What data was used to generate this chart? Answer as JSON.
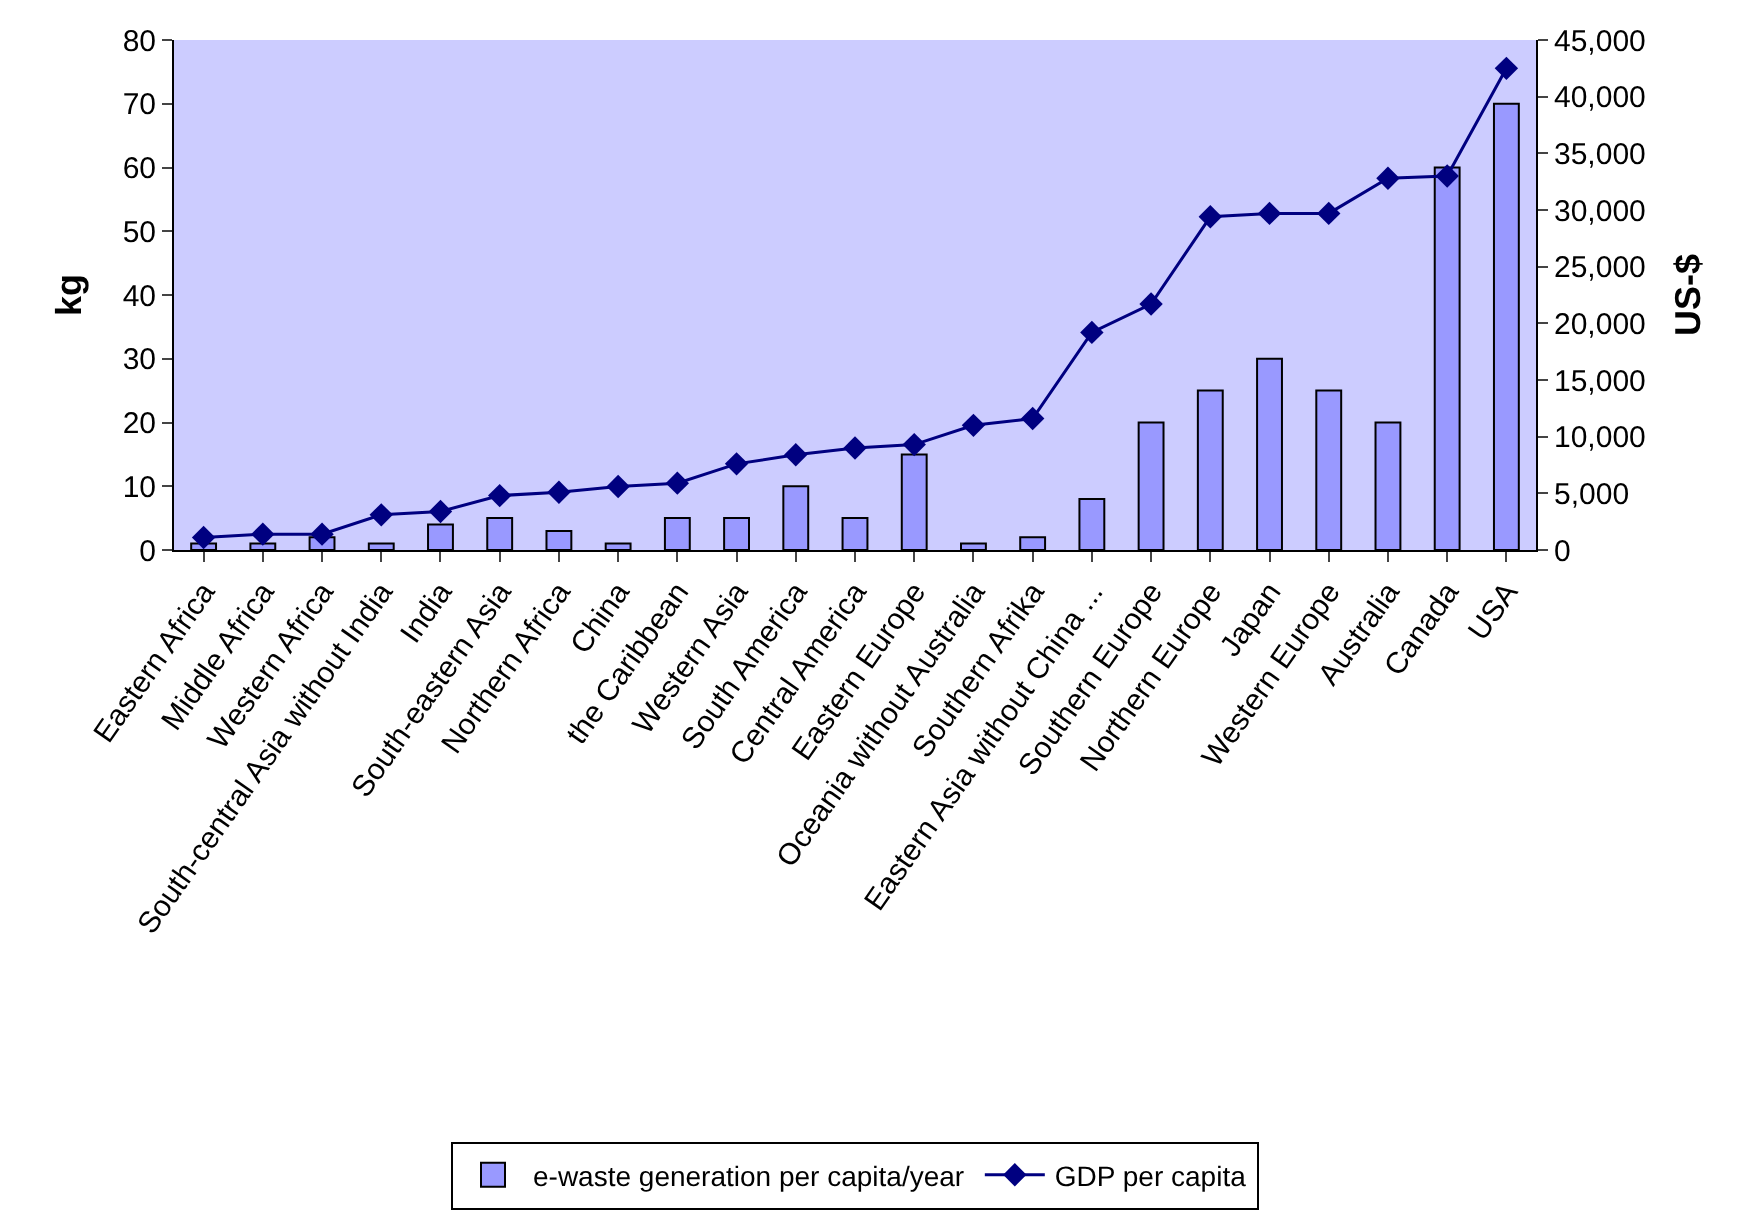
{
  "chart_data": {
    "type": "bar",
    "categories": [
      "Eastern Africa",
      "Middle Africa",
      "Western Africa",
      "South-central Asia without India",
      "India",
      "South-eastern Asia",
      "Northern Africa",
      "China",
      "the Caribbean",
      "Western Asia",
      "South America",
      "Central America",
      "Eastern Europe",
      "Oceania without Australia",
      "Southern Afrika",
      "Eastern Asia without China ...",
      "Southern Europe",
      "Northern Europe",
      "Japan",
      "Western Europe",
      "Australia",
      "Canada",
      "USA"
    ],
    "series": [
      {
        "name": "e-waste generation per capita/year",
        "color": "#9999ff",
        "values": [
          1,
          1,
          2,
          1,
          4,
          5,
          3,
          1,
          5,
          5,
          10,
          5,
          15,
          1,
          2,
          8,
          20,
          25,
          30,
          25,
          20,
          60,
          70
        ]
      },
      {
        "name": "GDP per capita",
        "type": "line",
        "axis": "y2",
        "color": "#000080",
        "marker": "diamond",
        "line_style": "solid",
        "values": [
          1100,
          1400,
          1400,
          3100,
          3400,
          4800,
          5100,
          5600,
          5900,
          7600,
          8400,
          9000,
          9300,
          11000,
          11600,
          19200,
          21700,
          29400,
          29700,
          29700,
          32800,
          33000,
          42500
        ]
      }
    ],
    "ylabel": "kg",
    "y2label": "US-$",
    "ylim": [
      0,
      80
    ],
    "yticks": [
      0,
      10,
      20,
      30,
      40,
      50,
      60,
      70,
      80
    ],
    "y2lim": [
      0,
      45000
    ],
    "y2ticks": [
      0,
      {
        "value": 5000,
        "label": "5,000"
      },
      {
        "value": 10000,
        "label": "10,000"
      },
      {
        "value": 15000,
        "label": "15,000"
      },
      {
        "value": 20000,
        "label": "20,000"
      },
      {
        "value": 25000,
        "label": "25,000"
      },
      {
        "value": 30000,
        "label": "30,000"
      },
      {
        "value": 35000,
        "label": "35,000"
      },
      {
        "value": 40000,
        "label": "40,000"
      },
      {
        "value": 45000,
        "label": "45,000"
      }
    ],
    "grid": false,
    "legend": "bottom"
  }
}
